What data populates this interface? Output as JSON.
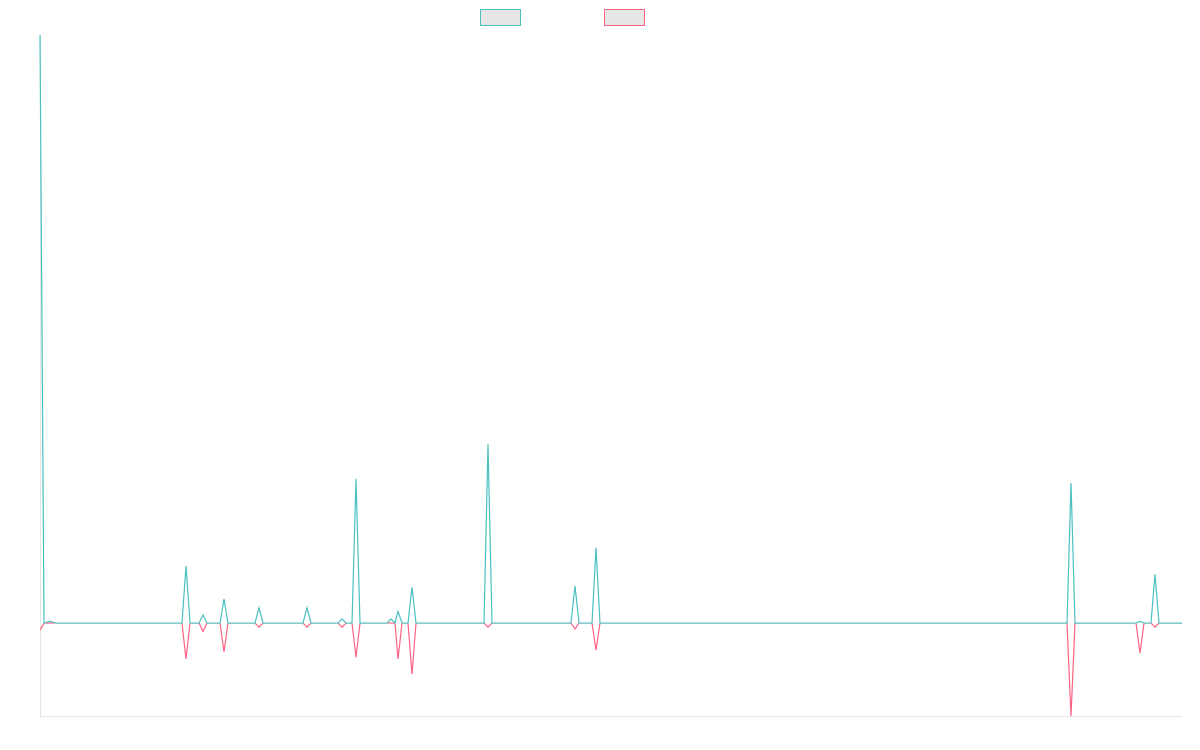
{
  "chart_data": {
    "type": "line",
    "x": [
      0,
      4,
      10,
      16,
      142,
      146,
      150,
      159,
      163,
      167,
      180,
      184,
      188,
      215,
      219,
      223,
      263,
      267,
      271,
      298,
      302,
      306,
      312,
      316,
      320,
      347,
      351,
      355,
      358,
      362,
      368,
      372,
      376,
      444,
      448,
      452,
      531,
      535,
      539,
      552,
      556,
      560,
      1027,
      1031,
      1035,
      1096,
      1100,
      1104,
      1111,
      1115,
      1119,
      1142
    ],
    "xlim": [
      0,
      1142
    ],
    "ylim": [
      -15.8,
      100
    ],
    "legend": "top",
    "series": [
      {
        "color": "#ff6384",
        "values": [
          -1.2,
          0,
          0,
          0,
          0,
          -6.1,
          0,
          0,
          -1.4,
          0,
          0,
          -4.9,
          0,
          0,
          -0.7,
          0,
          0,
          -0.7,
          0,
          0,
          -0.7,
          0,
          0,
          -5.8,
          0,
          0,
          0,
          0,
          -6.1,
          0,
          0,
          -8.7,
          0,
          0,
          -0.7,
          0,
          0,
          -1.0,
          0,
          0,
          -4.6,
          0,
          0,
          -15.8,
          0,
          0,
          -5.1,
          0,
          0,
          -0.7,
          0,
          0
        ]
      },
      {
        "color": "#4bc0c0",
        "values": [
          100,
          0,
          0.3,
          0,
          0,
          9.7,
          0,
          0,
          1.4,
          0,
          0,
          4.1,
          0,
          0,
          2.6,
          0,
          0,
          2.6,
          0,
          0,
          0.7,
          0,
          0,
          24.5,
          0,
          0,
          0.7,
          0,
          2.0,
          0,
          0,
          6.1,
          0,
          0,
          30.4,
          0,
          0,
          6.3,
          0,
          0,
          12.8,
          0,
          0,
          23.8,
          0,
          0,
          0.3,
          0,
          0,
          8.3,
          0,
          0
        ]
      }
    ]
  }
}
